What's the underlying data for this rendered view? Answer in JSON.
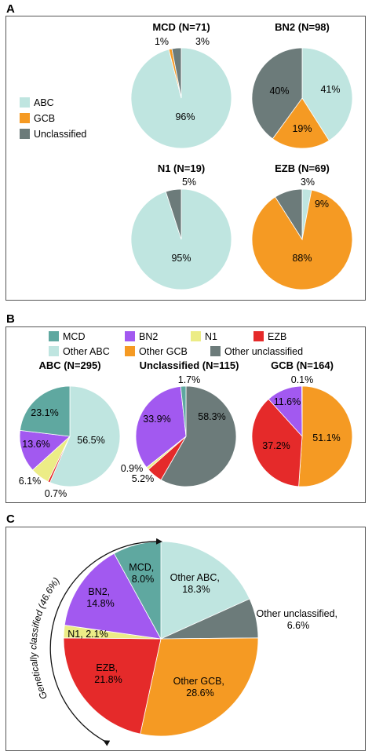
{
  "colors": {
    "abc": "#bfe5e0",
    "gcb": "#f59a23",
    "unclassified": "#6c7b7a",
    "mcd": "#5fa8a0",
    "bn2": "#a259f0",
    "n1": "#ecec86",
    "ezb": "#e52a2a",
    "other_abc": "#bfe5e0",
    "other_gcb": "#f59a23",
    "other_unclassified": "#6c7b7a",
    "panel_border": "#555555"
  },
  "panels": {
    "a": {
      "letter": "A",
      "legend": [
        "ABC",
        "GCB",
        "Unclassified"
      ]
    },
    "b": {
      "letter": "B",
      "legend": [
        "MCD",
        "BN2",
        "N1",
        "EZB",
        "Other ABC",
        "Other GCB",
        "Other unclassified"
      ]
    },
    "c": {
      "letter": "C",
      "arc_label": "Genetically classified (46.6%)"
    }
  },
  "chart_data": [
    {
      "type": "pie",
      "panel": "A",
      "title": "MCD (N=71)",
      "slices": [
        {
          "label": "ABC",
          "value": 96,
          "text": "96%",
          "color": "#bfe5e0"
        },
        {
          "label": "GCB",
          "value": 1,
          "text": "1%",
          "color": "#f59a23"
        },
        {
          "label": "Unclassified",
          "value": 3,
          "text": "3%",
          "color": "#6c7b7a"
        }
      ]
    },
    {
      "type": "pie",
      "panel": "A",
      "title": "BN2 (N=98)",
      "slices": [
        {
          "label": "ABC",
          "value": 41,
          "text": "41%",
          "color": "#bfe5e0"
        },
        {
          "label": "GCB",
          "value": 19,
          "text": "19%",
          "color": "#f59a23"
        },
        {
          "label": "Unclassified",
          "value": 40,
          "text": "40%",
          "color": "#6c7b7a"
        }
      ]
    },
    {
      "type": "pie",
      "panel": "A",
      "title": "N1 (N=19)",
      "slices": [
        {
          "label": "ABC",
          "value": 95,
          "text": "95%",
          "color": "#bfe5e0"
        },
        {
          "label": "Unclassified",
          "value": 5,
          "text": "5%",
          "color": "#6c7b7a"
        }
      ]
    },
    {
      "type": "pie",
      "panel": "A",
      "title": "EZB (N=69)",
      "slices": [
        {
          "label": "ABC",
          "value": 3,
          "text": "3%",
          "color": "#bfe5e0"
        },
        {
          "label": "GCB",
          "value": 88,
          "text": "88%",
          "color": "#f59a23"
        },
        {
          "label": "Unclassified",
          "value": 9,
          "text": "9%",
          "color": "#6c7b7a"
        }
      ]
    },
    {
      "type": "pie",
      "panel": "B",
      "title": "ABC (N=295)",
      "slices": [
        {
          "label": "Other ABC",
          "value": 56.5,
          "text": "56.5%",
          "color": "#bfe5e0"
        },
        {
          "label": "EZB",
          "value": 0.7,
          "text": "0.7%",
          "color": "#e52a2a"
        },
        {
          "label": "N1",
          "value": 6.1,
          "text": "6.1%",
          "color": "#ecec86"
        },
        {
          "label": "BN2",
          "value": 13.6,
          "text": "13.6%",
          "color": "#a259f0"
        },
        {
          "label": "MCD",
          "value": 23.1,
          "text": "23.1%",
          "color": "#5fa8a0"
        }
      ]
    },
    {
      "type": "pie",
      "panel": "B",
      "title": "Unclassified (N=115)",
      "slices": [
        {
          "label": "Other unclassified",
          "value": 58.3,
          "text": "58.3%",
          "color": "#6c7b7a"
        },
        {
          "label": "EZB",
          "value": 5.2,
          "text": "5.2%",
          "color": "#e52a2a"
        },
        {
          "label": "N1",
          "value": 0.9,
          "text": "0.9%",
          "color": "#ecec86"
        },
        {
          "label": "BN2",
          "value": 33.9,
          "text": "33.9%",
          "color": "#a259f0"
        },
        {
          "label": "MCD",
          "value": 1.7,
          "text": "1.7%",
          "color": "#5fa8a0"
        }
      ]
    },
    {
      "type": "pie",
      "panel": "B",
      "title": "GCB (N=164)",
      "slices": [
        {
          "label": "Other GCB",
          "value": 51.1,
          "text": "51.1%",
          "color": "#f59a23"
        },
        {
          "label": "EZB",
          "value": 37.2,
          "text": "37.2%",
          "color": "#e52a2a"
        },
        {
          "label": "BN2",
          "value": 11.6,
          "text": "11.6%",
          "color": "#a259f0"
        },
        {
          "label": "MCD",
          "value": 0.1,
          "text": "0.1%",
          "color": "#5fa8a0"
        }
      ]
    },
    {
      "type": "pie",
      "panel": "C",
      "title": "",
      "slices": [
        {
          "label": "Other ABC",
          "value": 18.3,
          "text": "Other ABC,|18.3%",
          "color": "#bfe5e0"
        },
        {
          "label": "Other unclassified",
          "value": 6.6,
          "text": "Other unclassified,|6.6%",
          "color": "#6c7b7a"
        },
        {
          "label": "Other GCB",
          "value": 28.6,
          "text": "Other GCB,|28.6%",
          "color": "#f59a23"
        },
        {
          "label": "EZB",
          "value": 21.8,
          "text": "EZB,|21.8%",
          "color": "#e52a2a"
        },
        {
          "label": "N1",
          "value": 2.1,
          "text": "N1, 2.1%",
          "color": "#ecec86"
        },
        {
          "label": "BN2",
          "value": 14.8,
          "text": "BN2,|14.8%",
          "color": "#a259f0"
        },
        {
          "label": "MCD",
          "value": 8.0,
          "text": "MCD,|8.0%",
          "color": "#5fa8a0"
        }
      ]
    }
  ]
}
